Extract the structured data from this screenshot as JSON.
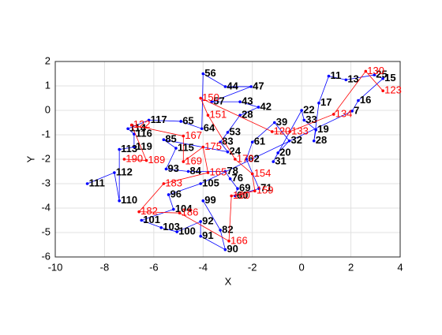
{
  "chart_data": {
    "type": "line",
    "xlabel": "X",
    "ylabel": "Y",
    "xlim": [
      -10,
      4
    ],
    "ylim": [
      -6,
      2
    ],
    "xticks": [
      -10,
      -8,
      -6,
      -4,
      -2,
      0,
      2,
      4
    ],
    "yticks": [
      -6,
      -5,
      -4,
      -3,
      -2,
      -1,
      0,
      1,
      2
    ],
    "grid": true,
    "series": [
      {
        "color": "#0000ff",
        "label_color": "#000000",
        "labels": [
          "111",
          "112",
          "110",
          "113",
          "119",
          "116",
          "114",
          "117",
          "65",
          "64",
          "56",
          "44",
          "47",
          "57",
          "43",
          "42",
          "28",
          "53",
          "83",
          "24",
          "85",
          "115",
          "93",
          "84",
          "78",
          "76",
          "69",
          "60",
          "71",
          "62",
          "61",
          "39",
          "32",
          "20",
          "31",
          "22",
          "33",
          "19",
          "28",
          "17",
          "11",
          "13",
          "25",
          "15",
          "16",
          "7",
          "105",
          "96",
          "104",
          "101",
          "103",
          "100",
          "92",
          "91",
          "90",
          "82",
          "99"
        ],
        "x": [
          -8.7,
          -7.6,
          -7.4,
          -7.4,
          -6.8,
          -6.8,
          -7.05,
          -6.2,
          -4.9,
          -4.05,
          -4.0,
          -3.1,
          -2.05,
          -3.65,
          -2.5,
          -1.75,
          -2.5,
          -3.0,
          -3.3,
          -3.0,
          -5.6,
          -5.1,
          -5.5,
          -4.6,
          -3.1,
          -2.9,
          -2.6,
          -2.7,
          -1.73,
          -2.24,
          -2.0,
          -1.1,
          -0.5,
          -0.96,
          -1.15,
          0.0,
          0.1,
          0.58,
          0.5,
          0.7,
          1.1,
          1.8,
          2.95,
          3.3,
          2.3,
          2.05,
          -4.1,
          -5.4,
          -5.2,
          -6.5,
          -5.7,
          -5.06,
          -4.1,
          -4.1,
          -3.1,
          -3.3,
          -4.0
        ],
        "y": [
          -3.0,
          -2.55,
          -3.7,
          -1.6,
          -1.5,
          -0.97,
          -0.75,
          -0.4,
          -0.45,
          -0.75,
          1.5,
          0.97,
          0.97,
          0.35,
          0.35,
          0.13,
          -0.2,
          -0.9,
          -1.3,
          -1.7,
          -1.2,
          -1.55,
          -2.4,
          -2.5,
          -2.5,
          -2.8,
          -3.2,
          -3.5,
          -3.2,
          -2.0,
          -1.3,
          -0.5,
          -1.25,
          -1.74,
          -2.1,
          0.0,
          -0.4,
          -0.8,
          -1.25,
          0.3,
          1.4,
          1.25,
          1.45,
          1.3,
          0.4,
          -0.03,
          -3.0,
          -3.45,
          -4.05,
          -4.5,
          -4.8,
          -4.97,
          -4.55,
          -5.15,
          -5.7,
          -4.9,
          -3.7
        ]
      },
      {
        "color": "#ff0000",
        "label_color": "#ff0000",
        "labels": [
          "190",
          "189",
          "122",
          "167",
          "169",
          "175",
          "165",
          "183",
          "182",
          "186",
          "166",
          "160",
          "159",
          "154",
          "170",
          "151",
          "150",
          "120",
          "133",
          "134",
          "130",
          "123"
        ],
        "x": [
          -7.2,
          -6.3,
          -6.9,
          -4.8,
          -4.8,
          -4.0,
          -3.8,
          -5.6,
          -6.6,
          -4.95,
          -2.95,
          -2.85,
          -1.9,
          -2.0,
          -2.7,
          -3.8,
          -4.1,
          -1.2,
          -0.48,
          1.3,
          2.6,
          3.3
        ],
        "y": [
          -2.0,
          -2.05,
          -0.6,
          -1.05,
          -2.1,
          -1.5,
          -2.55,
          -3.0,
          -4.15,
          -4.2,
          -5.35,
          -3.5,
          -3.3,
          -2.6,
          -2.0,
          -0.2,
          0.5,
          -0.87,
          -0.87,
          -0.16,
          1.6,
          0.8
        ]
      }
    ]
  }
}
